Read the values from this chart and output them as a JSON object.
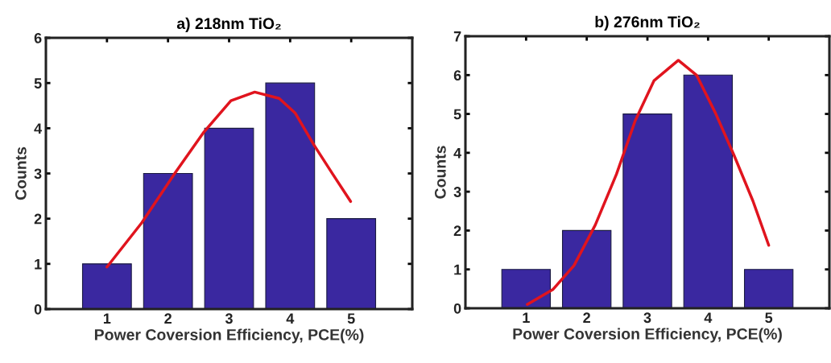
{
  "chart_data": [
    {
      "type": "bar",
      "title": "a) 218nm TiO₂",
      "xlabel": "Power Coversion Efficiency, PCE(%)",
      "ylabel": "Counts",
      "xlim": [
        0,
        6
      ],
      "xticks": [
        1,
        2,
        3,
        4,
        5
      ],
      "ylim": [
        0,
        6
      ],
      "yticks": [
        0,
        1,
        2,
        3,
        4,
        5,
        6
      ],
      "grid": false,
      "legend": false,
      "series": [
        {
          "x": [
            1,
            2,
            3,
            4,
            5
          ],
          "values": [
            1,
            3,
            4,
            5,
            2
          ],
          "color": "#3a28a0"
        },
        {
          "type": "line",
          "x": [
            1,
            1.57,
            2.1,
            2.59,
            3.03,
            3.42,
            3.82,
            4.08,
            4.39,
            4.7,
            4.99
          ],
          "values": [
            0.93,
            1.91,
            2.98,
            3.92,
            4.61,
            4.8,
            4.66,
            4.34,
            3.63,
            2.98,
            2.38
          ],
          "color": "#e0141e"
        }
      ]
    },
    {
      "type": "bar",
      "title": "b) 276nm TiO₂",
      "xlabel": "Power Coversion Efficiency, PCE(%)",
      "ylabel": "Counts",
      "xlim": [
        0,
        6
      ],
      "xticks": [
        1,
        2,
        3,
        4,
        5
      ],
      "ylim": [
        0,
        7
      ],
      "yticks": [
        0,
        1,
        2,
        3,
        4,
        5,
        6,
        7
      ],
      "grid": false,
      "legend": false,
      "series": [
        {
          "x": [
            1,
            2,
            3,
            4,
            5
          ],
          "values": [
            1,
            2,
            5,
            6,
            1
          ],
          "color": "#3a28a0"
        },
        {
          "type": "line",
          "x": [
            1.02,
            1.44,
            1.79,
            2.14,
            2.49,
            2.8,
            3.11,
            3.51,
            3.81,
            4.12,
            4.43,
            4.74,
            5.0
          ],
          "values": [
            0.1,
            0.48,
            1.1,
            2.14,
            3.45,
            4.83,
            5.86,
            6.38,
            6.0,
            5.03,
            3.93,
            2.76,
            1.62
          ],
          "color": "#e0141e"
        }
      ]
    }
  ]
}
